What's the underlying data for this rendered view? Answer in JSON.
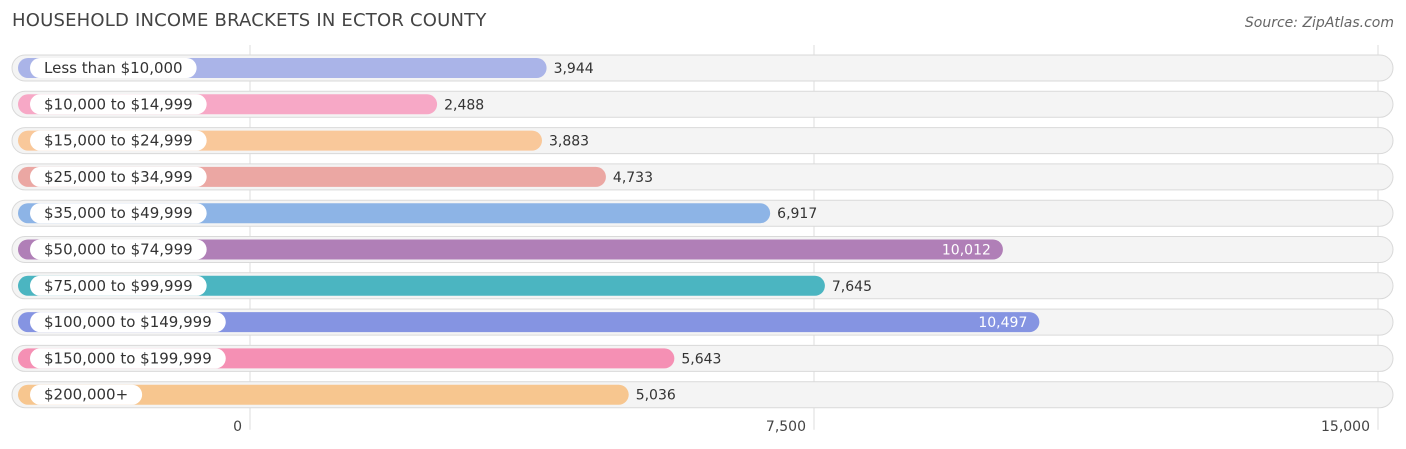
{
  "chart_data": {
    "type": "bar",
    "orientation": "horizontal",
    "title": "HOUSEHOLD INCOME BRACKETS IN ECTOR COUNTY",
    "source": "Source: ZipAtlas.com",
    "categories": [
      "Less than $10,000",
      "$10,000 to $14,999",
      "$15,000 to $24,999",
      "$25,000 to $34,999",
      "$35,000 to $49,999",
      "$50,000 to $74,999",
      "$75,000 to $99,999",
      "$100,000 to $149,999",
      "$150,000 to $199,999",
      "$200,000+"
    ],
    "values": [
      3944,
      2488,
      3883,
      4733,
      6917,
      10012,
      7645,
      10497,
      5643,
      5036
    ],
    "value_labels": [
      "3,944",
      "2,488",
      "3,883",
      "4,733",
      "6,917",
      "10,012",
      "7,645",
      "10,497",
      "5,643",
      "5,036"
    ],
    "colors": [
      "#aab4e8",
      "#f7a8c6",
      "#f9c89a",
      "#eba7a3",
      "#8db4e6",
      "#b07fb7",
      "#4bb5c1",
      "#8594e2",
      "#f590b4",
      "#f7c68f"
    ],
    "xlim": [
      0,
      15000
    ],
    "ticks": [
      0,
      7500,
      15000
    ],
    "tick_labels": [
      "0",
      "7,500",
      "15,000"
    ],
    "grid": true
  }
}
